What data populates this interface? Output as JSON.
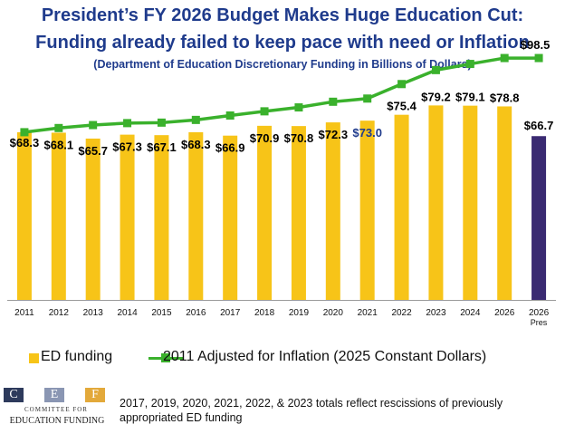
{
  "header": {
    "title": "President’s FY 2026 Budget Makes Huge Education Cut:",
    "subtitle": "Funding already failed to keep pace with need or Inflation",
    "note": "(Department of Education Discretionary Funding in Billions of Dollars)"
  },
  "chart_data": {
    "type": "bar",
    "categories": [
      "2011",
      "2012",
      "2013",
      "2014",
      "2015",
      "2016",
      "2017",
      "2018",
      "2019",
      "2020",
      "2021",
      "2022",
      "2023",
      "2024",
      "2026",
      "2026 Pres"
    ],
    "series": [
      {
        "name": "ED funding",
        "type": "bar",
        "values": [
          68.3,
          68.1,
          65.7,
          67.3,
          67.1,
          68.3,
          66.9,
          70.9,
          70.8,
          72.3,
          73.0,
          75.4,
          79.2,
          79.1,
          78.8,
          66.7
        ],
        "labels": [
          "$68.3",
          "$68.1",
          "$65.7",
          "$67.3",
          "$67.1",
          "$68.3",
          "$66.9",
          "$70.9",
          "$70.8",
          "$72.3",
          "$73.0",
          "$75.4",
          "$79.2",
          "$79.1",
          "$78.8",
          "$66.7"
        ]
      },
      {
        "name": "2011 Adjusted for Inflation (2025 Constant Dollars)",
        "type": "line",
        "values": [
          68.3,
          70.0,
          71.2,
          72.0,
          72.2,
          73.3,
          75.1,
          76.8,
          78.4,
          80.7,
          82.0,
          87.9,
          93.6,
          96.1,
          98.5,
          98.5
        ],
        "labels": [
          "",
          "",
          "",
          "",
          "",
          "",
          "",
          "",
          "",
          "",
          "",
          "",
          "",
          "",
          "",
          "$98.5"
        ]
      }
    ],
    "colors": {
      "bar": "#f7c418",
      "bar_pres": "#3a2a72",
      "line": "#3ab12c",
      "label_highlight": "#1f3b8c"
    },
    "highlight_label_index": 10,
    "ylim": [
      0,
      100
    ]
  },
  "legend": {
    "bar": "ED funding",
    "line": "2011 Adjusted for Inflation (2025 Constant Dollars)"
  },
  "logo": {
    "letters": [
      "C",
      "E",
      "F"
    ],
    "line1": "COMMITTEE FOR",
    "line2": "EDUCATION FUNDING"
  },
  "footnote": "2017, 2019, 2020, 2021, 2022, & 2023 totals reflect rescissions of previously appropriated ED funding"
}
